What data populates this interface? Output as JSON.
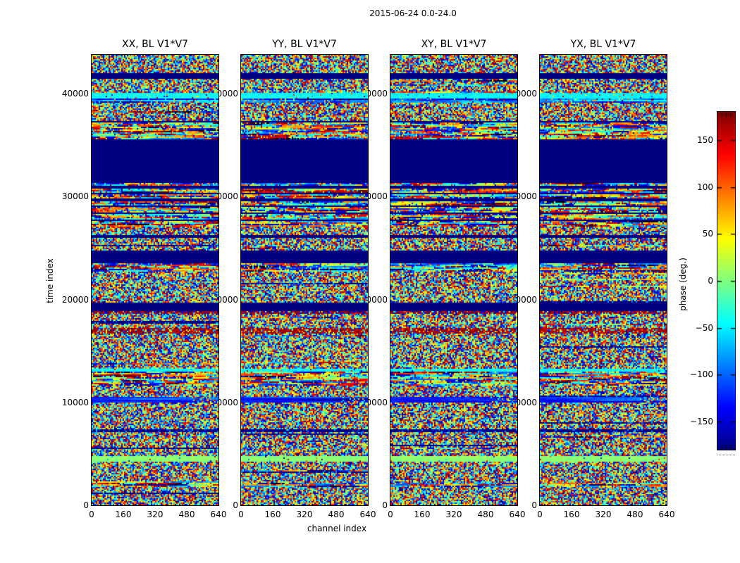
{
  "figure": {
    "title": "2015-06-24 0.0-24.0",
    "xlabel": "channel index",
    "ylabel": "time index"
  },
  "panels": [
    {
      "title": "XX, BL V1*V7",
      "seed": 101
    },
    {
      "title": "YY, BL V1*V7",
      "seed": 202
    },
    {
      "title": "XY, BL V1*V7",
      "seed": 303
    },
    {
      "title": "YX, BL V1*V7",
      "seed": 404
    }
  ],
  "axes": {
    "xtick_labels": [
      "0",
      "160",
      "320",
      "480",
      "640"
    ],
    "xtick_values": [
      0,
      160,
      320,
      480,
      640
    ],
    "ytick_labels": [
      "40000",
      "30000",
      "20000",
      "10000",
      "0"
    ],
    "ytick_values": [
      40000,
      30000,
      20000,
      10000,
      0
    ],
    "x_range": [
      0,
      640
    ],
    "y_range": [
      0,
      43800
    ]
  },
  "colorbar": {
    "label": "phase (deg.)",
    "tick_labels": [
      "150",
      "100",
      "50",
      "0",
      "−50",
      "−100",
      "−150"
    ],
    "tick_values": [
      150,
      100,
      50,
      0,
      -50,
      -100,
      -150
    ],
    "vmin": -180,
    "vmax": 180,
    "colormap": "jet",
    "min_color": "#000080",
    "max_color": "#800000"
  },
  "chart_data": {
    "type": "heatmap",
    "title": "2015-06-24 0.0-24.0",
    "xlabel": "channel index",
    "ylabel": "time index",
    "value_label": "phase (deg.)",
    "subplots": [
      "XX, BL V1*V7",
      "YY, BL V1*V7",
      "XY, BL V1*V7",
      "YX, BL V1*V7"
    ],
    "x_range": [
      0,
      640
    ],
    "y_range": [
      0,
      43800
    ],
    "value_range": [
      -180,
      180
    ],
    "colormap": "jet",
    "legend_position": "right-colorbar",
    "grid": false,
    "description": "Random interferometric phase noise in all four polarization panels; identical horizontal flagged bands (solid navy, phase undefined) and smooth low-noise bands shared across panels.",
    "bands": [
      {
        "f0": 0.0,
        "f1": 0.039,
        "type": "noise"
      },
      {
        "f0": 0.039,
        "f1": 0.051,
        "type": "flag"
      },
      {
        "f0": 0.051,
        "f1": 0.083,
        "type": "noise"
      },
      {
        "f0": 0.083,
        "f1": 0.094,
        "type": "cyan"
      },
      {
        "f0": 0.094,
        "f1": 0.106,
        "type": "bluestreak"
      },
      {
        "f0": 0.106,
        "f1": 0.144,
        "type": "noise"
      },
      {
        "f0": 0.144,
        "f1": 0.149,
        "type": "flag"
      },
      {
        "f0": 0.149,
        "f1": 0.185,
        "type": "stripes"
      },
      {
        "f0": 0.185,
        "f1": 0.282,
        "type": "flag"
      },
      {
        "f0": 0.282,
        "f1": 0.29,
        "type": "stripes"
      },
      {
        "f0": 0.29,
        "f1": 0.295,
        "type": "flag"
      },
      {
        "f0": 0.295,
        "f1": 0.304,
        "type": "stripes"
      },
      {
        "f0": 0.304,
        "f1": 0.308,
        "type": "flag"
      },
      {
        "f0": 0.308,
        "f1": 0.318,
        "type": "stripes"
      },
      {
        "f0": 0.318,
        "f1": 0.322,
        "type": "flag"
      },
      {
        "f0": 0.322,
        "f1": 0.333,
        "type": "stripes"
      },
      {
        "f0": 0.333,
        "f1": 0.337,
        "type": "flag"
      },
      {
        "f0": 0.337,
        "f1": 0.348,
        "type": "stripes"
      },
      {
        "f0": 0.348,
        "f1": 0.352,
        "type": "flag"
      },
      {
        "f0": 0.352,
        "f1": 0.364,
        "type": "stripes"
      },
      {
        "f0": 0.364,
        "f1": 0.368,
        "type": "flag"
      },
      {
        "f0": 0.368,
        "f1": 0.38,
        "type": "stripes"
      },
      {
        "f0": 0.38,
        "f1": 0.398,
        "type": "noise"
      },
      {
        "f0": 0.398,
        "f1": 0.406,
        "type": "flag"
      },
      {
        "f0": 0.406,
        "f1": 0.433,
        "type": "noise"
      },
      {
        "f0": 0.433,
        "f1": 0.46,
        "type": "flag"
      },
      {
        "f0": 0.46,
        "f1": 0.48,
        "type": "stripes"
      },
      {
        "f0": 0.48,
        "f1": 0.547,
        "type": "noise"
      },
      {
        "f0": 0.547,
        "f1": 0.567,
        "type": "flag"
      },
      {
        "f0": 0.567,
        "f1": 0.573,
        "type": "redline"
      },
      {
        "f0": 0.573,
        "f1": 0.606,
        "type": "noise"
      },
      {
        "f0": 0.606,
        "f1": 0.617,
        "type": "redband"
      },
      {
        "f0": 0.617,
        "f1": 0.695,
        "type": "noise"
      },
      {
        "f0": 0.695,
        "f1": 0.703,
        "type": "cyan"
      },
      {
        "f0": 0.703,
        "f1": 0.732,
        "type": "stripes"
      },
      {
        "f0": 0.732,
        "f1": 0.757,
        "type": "noise"
      },
      {
        "f0": 0.757,
        "f1": 0.77,
        "type": "blueband"
      },
      {
        "f0": 0.77,
        "f1": 0.831,
        "type": "noise"
      },
      {
        "f0": 0.831,
        "f1": 0.835,
        "type": "darkline"
      },
      {
        "f0": 0.835,
        "f1": 0.89,
        "type": "noise"
      },
      {
        "f0": 0.89,
        "f1": 0.903,
        "type": "green"
      },
      {
        "f0": 0.903,
        "f1": 0.948,
        "type": "noise"
      },
      {
        "f0": 0.948,
        "f1": 0.957,
        "type": "stripes"
      },
      {
        "f0": 0.957,
        "f1": 1.0,
        "type": "noise"
      }
    ]
  }
}
